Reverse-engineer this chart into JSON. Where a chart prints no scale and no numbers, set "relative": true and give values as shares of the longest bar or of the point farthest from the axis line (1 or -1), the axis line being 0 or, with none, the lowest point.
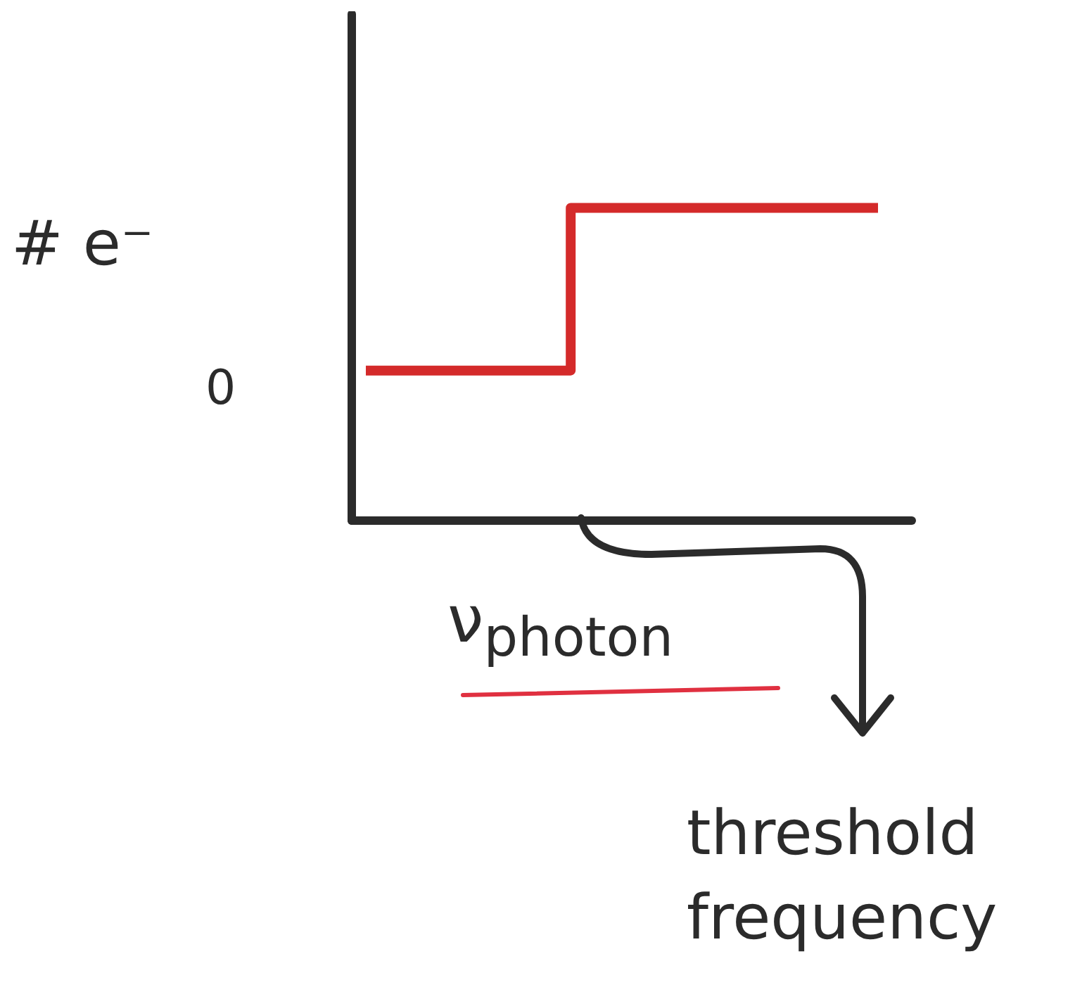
{
  "chart_data": {
    "type": "step",
    "relative": true,
    "ylabel": "# e⁻",
    "xlabel": "ν$_{photon}$",
    "categories": [
      null,
      null,
      null,
      null,
      null,
      null,
      null,
      null,
      null,
      null,
      null
    ],
    "series": [
      {
        "color": "#d42a2a",
        "values": [
          0.48,
          0.48,
          0.48,
          0.48,
          1,
          1,
          1,
          1,
          1,
          1,
          1
        ]
      }
    ],
    "annotations": [
      "0",
      "threshold frequency"
    ],
    "grid": false,
    "legend": false,
    "marker": "none",
    "line_style": "solid"
  }
}
